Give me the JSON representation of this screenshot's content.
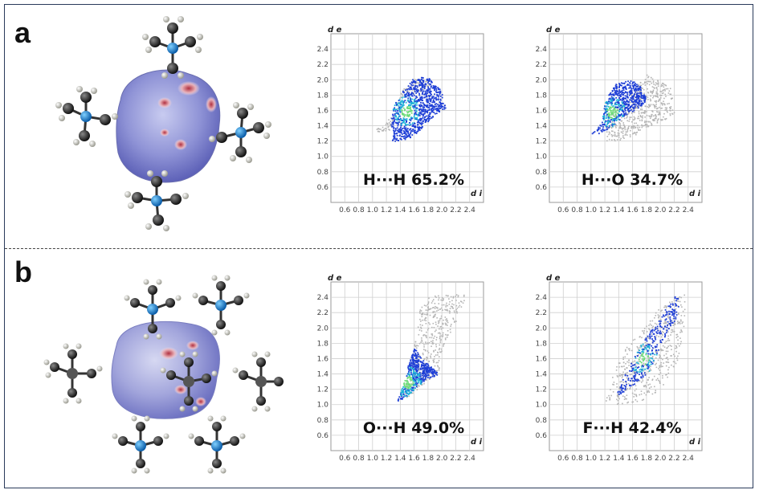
{
  "panels": [
    {
      "letter": "a"
    },
    {
      "letter": "b"
    }
  ],
  "colors": {
    "frame": "#2a3a5a",
    "grey_points": "#b5b5b5",
    "blue_points": "#1f3fd6",
    "cyan_points": "#20b4d8",
    "green_points": "#6fdc7a",
    "surface": "#8f93d6",
    "carbon": "#2a2a2a",
    "nitrogen": "#1e90d6",
    "hydrogen": "#d8d8d0"
  },
  "chart_data": [
    {
      "type": "scatter",
      "panel": "a",
      "contact_label": "H···H 65.2%",
      "xlabel": "d i",
      "ylabel": "d e",
      "xlim": [
        0.4,
        2.6
      ],
      "ylim": [
        0.4,
        2.6
      ],
      "xticks": [
        "0.6",
        "0.8",
        "1.0",
        "1.2",
        "1.4",
        "1.6",
        "1.8",
        "2.0",
        "2.2",
        "2.4"
      ],
      "yticks": [
        "0.6",
        "0.8",
        "1.0",
        "1.2",
        "1.4",
        "1.6",
        "1.8",
        "2.0",
        "2.2",
        "2.4"
      ],
      "grid": true,
      "highlight_region": [
        [
          1.25,
          1.2
        ],
        [
          1.3,
          1.3
        ],
        [
          1.25,
          1.45
        ],
        [
          1.3,
          1.68
        ],
        [
          1.42,
          1.85
        ],
        [
          1.58,
          2.02
        ],
        [
          1.78,
          2.05
        ],
        [
          2.0,
          1.85
        ],
        [
          2.05,
          1.62
        ],
        [
          1.9,
          1.55
        ],
        [
          1.75,
          1.42
        ],
        [
          1.6,
          1.28
        ],
        [
          1.45,
          1.22
        ]
      ],
      "highlight_peak": [
        1.48,
        1.6
      ],
      "background_region": [
        [
          1.0,
          1.32
        ],
        [
          1.3,
          1.55
        ],
        [
          1.4,
          1.85
        ],
        [
          1.6,
          2.02
        ],
        [
          1.85,
          2.0
        ],
        [
          1.8,
          1.9
        ],
        [
          1.4,
          1.75
        ],
        [
          1.25,
          1.35
        ]
      ]
    },
    {
      "type": "scatter",
      "panel": "a",
      "contact_label": "H···O 34.7%",
      "xlabel": "d i",
      "ylabel": "d e",
      "xlim": [
        0.4,
        2.6
      ],
      "ylim": [
        0.4,
        2.6
      ],
      "xticks": [
        "0.6",
        "0.8",
        "1.0",
        "1.2",
        "1.4",
        "1.6",
        "1.8",
        "2.0",
        "2.2",
        "2.4"
      ],
      "yticks": [
        "0.6",
        "0.8",
        "1.0",
        "1.2",
        "1.4",
        "1.6",
        "1.8",
        "2.0",
        "2.2",
        "2.4"
      ],
      "grid": true,
      "highlight_region": [
        [
          1.0,
          1.3
        ],
        [
          1.15,
          1.45
        ],
        [
          1.2,
          1.75
        ],
        [
          1.35,
          1.95
        ],
        [
          1.55,
          2.02
        ],
        [
          1.7,
          1.92
        ],
        [
          1.8,
          1.75
        ],
        [
          1.7,
          1.65
        ],
        [
          1.5,
          1.55
        ],
        [
          1.3,
          1.4
        ],
        [
          1.1,
          1.3
        ]
      ],
      "highlight_peak": [
        1.3,
        1.58
      ],
      "background_region": [
        [
          1.2,
          1.2
        ],
        [
          1.25,
          1.55
        ],
        [
          1.5,
          1.75
        ],
        [
          1.8,
          2.08
        ],
        [
          2.15,
          1.9
        ],
        [
          2.2,
          1.55
        ],
        [
          1.85,
          1.4
        ],
        [
          1.5,
          1.22
        ]
      ]
    },
    {
      "type": "scatter",
      "panel": "b",
      "contact_label": "O···H 49.0%",
      "xlabel": "d i",
      "ylabel": "d e",
      "xlim": [
        0.4,
        2.6
      ],
      "ylim": [
        0.4,
        2.6
      ],
      "xticks": [
        "0.6",
        "0.8",
        "1.0",
        "1.2",
        "1.4",
        "1.6",
        "1.8",
        "2.0",
        "2.2",
        "2.4"
      ],
      "yticks": [
        "0.6",
        "0.8",
        "1.0",
        "1.2",
        "1.4",
        "1.6",
        "1.8",
        "2.0",
        "2.2",
        "2.4"
      ],
      "grid": true,
      "highlight_region": [
        [
          1.35,
          1.05
        ],
        [
          1.45,
          1.3
        ],
        [
          1.5,
          1.5
        ],
        [
          1.6,
          1.75
        ],
        [
          1.7,
          1.6
        ],
        [
          1.85,
          1.5
        ],
        [
          1.95,
          1.4
        ],
        [
          1.8,
          1.35
        ],
        [
          1.65,
          1.25
        ],
        [
          1.5,
          1.12
        ]
      ],
      "highlight_peak": [
        1.5,
        1.3
      ],
      "background_region": [
        [
          1.4,
          1.12
        ],
        [
          1.55,
          1.45
        ],
        [
          1.6,
          1.85
        ],
        [
          1.65,
          2.2
        ],
        [
          1.8,
          2.42
        ],
        [
          2.35,
          2.45
        ],
        [
          2.2,
          2.1
        ],
        [
          2.0,
          1.75
        ],
        [
          1.95,
          1.4
        ],
        [
          1.7,
          1.25
        ],
        [
          1.5,
          1.1
        ]
      ]
    },
    {
      "type": "scatter",
      "panel": "b",
      "contact_label": "F···H 42.4%",
      "xlabel": "d i",
      "ylabel": "d e",
      "xlim": [
        0.4,
        2.6
      ],
      "ylim": [
        0.4,
        2.6
      ],
      "xticks": [
        "0.6",
        "0.8",
        "1.0",
        "1.2",
        "1.4",
        "1.6",
        "1.8",
        "2.0",
        "2.2",
        "2.4"
      ],
      "yticks": [
        "0.6",
        "0.8",
        "1.0",
        "1.2",
        "1.4",
        "1.6",
        "1.8",
        "2.0",
        "2.2",
        "2.4"
      ],
      "grid": true,
      "highlight_region": [
        [
          1.35,
          1.1
        ],
        [
          1.45,
          1.35
        ],
        [
          1.6,
          1.6
        ],
        [
          1.75,
          1.85
        ],
        [
          1.95,
          2.1
        ],
        [
          2.2,
          2.42
        ],
        [
          2.32,
          2.38
        ],
        [
          2.2,
          2.1
        ],
        [
          2.0,
          1.8
        ],
        [
          1.85,
          1.45
        ],
        [
          1.65,
          1.3
        ],
        [
          1.45,
          1.15
        ]
      ],
      "highlight_peak": [
        1.75,
        1.6
      ],
      "background_region": [
        [
          1.2,
          1.05
        ],
        [
          1.3,
          1.4
        ],
        [
          1.5,
          1.75
        ],
        [
          1.75,
          2.0
        ],
        [
          2.0,
          2.3
        ],
        [
          2.35,
          2.45
        ],
        [
          2.35,
          2.1
        ],
        [
          2.25,
          1.6
        ],
        [
          2.0,
          1.2
        ],
        [
          1.7,
          1.05
        ],
        [
          1.4,
          1.0
        ]
      ]
    }
  ]
}
